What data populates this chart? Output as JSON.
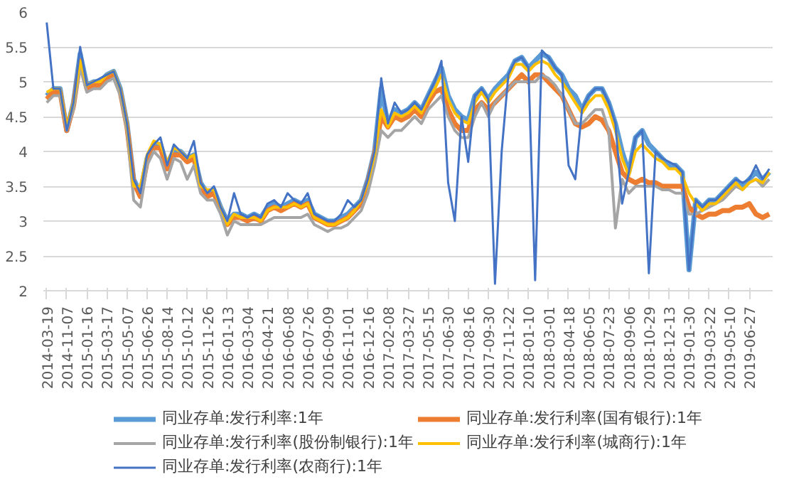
{
  "chart_data": {
    "type": "line",
    "categories": [
      "2014-03-19",
      null,
      null,
      "2014-11-07",
      null,
      null,
      "2015-01-16",
      null,
      null,
      "2015-03-17",
      null,
      null,
      "2015-05-07",
      null,
      null,
      "2015-06-26",
      null,
      null,
      "2015-08-14",
      null,
      null,
      "2015-10-12",
      null,
      null,
      "2015-11-26",
      null,
      null,
      "2016-01-13",
      null,
      null,
      "2016-03-04",
      null,
      null,
      "2016-04-21",
      null,
      null,
      "2016-06-08",
      null,
      null,
      "2016-07-26",
      null,
      null,
      "2016-09-09",
      null,
      null,
      "2016-11-01",
      null,
      null,
      "2016-12-16",
      null,
      null,
      "2017-02-08",
      null,
      null,
      "2017-03-27",
      null,
      null,
      "2017-05-15",
      null,
      null,
      "2017-06-30",
      null,
      null,
      "2017-08-16",
      null,
      null,
      "2017-09-30",
      null,
      null,
      "2017-11-22",
      null,
      null,
      "2018-01-10",
      null,
      null,
      "2018-03-01",
      null,
      null,
      "2018-04-18",
      null,
      null,
      "2018-06-05",
      null,
      null,
      "2018-07-23",
      null,
      null,
      "2018-09-06",
      null,
      null,
      "2018-10-29",
      null,
      null,
      "2018-12-13",
      null,
      null,
      "2019-01-30",
      null,
      null,
      "2019-03-22",
      null,
      null,
      "2019-05-10",
      null,
      null,
      "2019-06-27",
      null,
      null,
      null
    ],
    "ylim": [
      2,
      6
    ],
    "yticks": [
      2,
      2.5,
      3,
      3.5,
      4,
      4.5,
      5,
      5.5,
      6
    ],
    "grid": "y",
    "legend": "bottom",
    "marker": "none",
    "line_style": "solid",
    "series": [
      {
        "name": "同业存单:发行利率:1年",
        "color": "#5b9bd5",
        "values": [
          4.8,
          4.9,
          4.9,
          4.3,
          4.7,
          5.4,
          4.95,
          5.0,
          5.0,
          5.1,
          5.15,
          4.9,
          4.4,
          3.6,
          3.4,
          3.9,
          4.1,
          4.1,
          3.8,
          4.0,
          4.0,
          3.9,
          3.95,
          3.55,
          3.4,
          3.45,
          3.2,
          3.0,
          3.1,
          3.1,
          3.05,
          3.1,
          3.05,
          3.2,
          3.25,
          3.2,
          3.25,
          3.3,
          3.25,
          3.3,
          3.1,
          3.05,
          3.0,
          3.0,
          3.05,
          3.1,
          3.2,
          3.3,
          3.6,
          4.0,
          4.9,
          4.4,
          4.6,
          4.55,
          4.6,
          4.7,
          4.6,
          4.8,
          5.0,
          5.2,
          4.8,
          4.6,
          4.5,
          4.45,
          4.8,
          4.9,
          4.75,
          4.9,
          5.0,
          5.1,
          5.3,
          5.35,
          5.2,
          5.3,
          5.4,
          5.35,
          5.2,
          5.1,
          4.9,
          4.8,
          4.6,
          4.8,
          4.9,
          4.9,
          4.7,
          4.4,
          4.0,
          3.7,
          4.2,
          4.3,
          4.1,
          4.0,
          3.9,
          3.8,
          3.8,
          3.7,
          2.3,
          3.3,
          3.2,
          3.3,
          3.3,
          3.4,
          3.5,
          3.6,
          3.5,
          3.6,
          3.7,
          3.6,
          3.7
        ]
      },
      {
        "name": "同业存单:发行利率(国有银行):1年",
        "color": "#ed7d31",
        "values": [
          4.75,
          4.85,
          4.85,
          4.3,
          4.65,
          5.3,
          4.9,
          4.95,
          4.95,
          5.05,
          5.1,
          4.85,
          4.35,
          3.55,
          3.35,
          3.85,
          4.05,
          4.05,
          3.75,
          3.95,
          3.95,
          3.85,
          3.9,
          3.5,
          3.35,
          3.4,
          3.15,
          2.95,
          3.05,
          3.05,
          3.0,
          3.05,
          3.0,
          3.15,
          3.2,
          3.15,
          3.2,
          3.25,
          3.2,
          3.25,
          3.05,
          3.0,
          2.95,
          2.95,
          3.0,
          3.05,
          3.15,
          3.25,
          3.55,
          3.95,
          4.5,
          4.35,
          4.5,
          4.45,
          4.5,
          4.6,
          4.5,
          4.7,
          4.85,
          4.9,
          4.6,
          4.4,
          4.3,
          4.3,
          4.6,
          4.7,
          4.6,
          4.7,
          4.8,
          4.9,
          5.0,
          5.1,
          5.0,
          5.1,
          5.1,
          5.0,
          4.9,
          4.8,
          4.6,
          4.4,
          4.35,
          4.4,
          4.5,
          4.45,
          4.3,
          4.0,
          3.7,
          3.6,
          3.55,
          3.6,
          3.55,
          3.55,
          3.5,
          3.5,
          3.5,
          3.5,
          3.2,
          3.1,
          3.05,
          3.1,
          3.1,
          3.15,
          3.15,
          3.2,
          3.2,
          3.25,
          3.1,
          3.05,
          3.1
        ]
      },
      {
        "name": "同业存单:发行利率(股份制银行):1年",
        "color": "#a5a5a5",
        "values": [
          4.7,
          4.8,
          4.8,
          4.3,
          4.6,
          5.2,
          4.85,
          4.9,
          4.9,
          5.0,
          5.05,
          4.8,
          4.3,
          3.3,
          3.2,
          3.8,
          4.0,
          3.9,
          3.6,
          3.9,
          3.85,
          3.6,
          3.8,
          3.4,
          3.3,
          3.3,
          3.1,
          2.8,
          3.0,
          2.95,
          2.95,
          2.95,
          2.95,
          3.0,
          3.05,
          3.05,
          3.05,
          3.05,
          3.05,
          3.1,
          2.95,
          2.9,
          2.85,
          2.9,
          2.9,
          2.95,
          3.05,
          3.15,
          3.4,
          3.8,
          4.3,
          4.2,
          4.3,
          4.3,
          4.4,
          4.5,
          4.4,
          4.6,
          4.7,
          4.8,
          4.5,
          4.3,
          4.2,
          4.2,
          4.5,
          4.7,
          4.5,
          4.7,
          4.8,
          4.9,
          5.0,
          5.0,
          5.0,
          5.0,
          5.1,
          5.05,
          4.95,
          4.8,
          4.6,
          4.4,
          4.4,
          4.5,
          4.6,
          4.6,
          4.3,
          2.9,
          3.6,
          3.4,
          3.5,
          3.5,
          3.5,
          3.5,
          3.45,
          3.45,
          3.4,
          3.4,
          3.1,
          3.1,
          3.15,
          3.2,
          3.25,
          3.3,
          3.4,
          3.5,
          3.45,
          3.55,
          3.6,
          3.5,
          3.6
        ]
      },
      {
        "name": "同业存单:发行利率(城商行):1年",
        "color": "#ffc000",
        "values": [
          4.85,
          4.9,
          4.9,
          4.35,
          4.7,
          5.3,
          4.95,
          5.0,
          5.0,
          5.1,
          5.15,
          4.9,
          4.4,
          3.5,
          3.5,
          3.95,
          4.15,
          4.1,
          3.85,
          4.05,
          4.0,
          3.9,
          3.95,
          3.5,
          3.45,
          3.45,
          3.2,
          2.95,
          3.1,
          3.05,
          3.05,
          3.05,
          3.0,
          3.15,
          3.2,
          3.2,
          3.2,
          3.25,
          3.2,
          3.25,
          3.05,
          3.0,
          2.95,
          2.95,
          3.0,
          3.05,
          3.15,
          3.3,
          3.55,
          3.95,
          4.6,
          4.35,
          4.55,
          4.5,
          4.55,
          4.65,
          4.55,
          4.75,
          4.9,
          5.1,
          4.75,
          4.55,
          4.45,
          4.4,
          4.7,
          4.85,
          4.7,
          4.85,
          4.95,
          5.05,
          5.25,
          5.25,
          5.15,
          5.25,
          5.3,
          5.25,
          5.1,
          5.0,
          4.85,
          4.7,
          4.55,
          4.7,
          4.8,
          4.8,
          4.6,
          4.3,
          3.9,
          3.65,
          4.0,
          4.1,
          4.0,
          3.9,
          3.85,
          3.75,
          3.75,
          3.65,
          3.4,
          3.25,
          3.15,
          3.25,
          3.25,
          3.35,
          3.45,
          3.55,
          3.45,
          3.55,
          3.6,
          3.55,
          3.7
        ]
      },
      {
        "name": "同业存单:发行利率(农商行):1年",
        "color": "#4472c4",
        "values": [
          5.85,
          4.9,
          4.9,
          4.3,
          4.7,
          5.5,
          4.95,
          5.0,
          5.05,
          5.1,
          5.15,
          4.9,
          4.4,
          3.6,
          3.4,
          3.95,
          4.1,
          4.2,
          3.8,
          4.1,
          4.0,
          3.9,
          4.15,
          3.55,
          3.4,
          3.5,
          3.2,
          3.0,
          3.4,
          3.1,
          3.05,
          3.1,
          3.05,
          3.25,
          3.3,
          3.2,
          3.4,
          3.3,
          3.25,
          3.4,
          3.1,
          3.05,
          3.0,
          3.0,
          3.1,
          3.3,
          3.2,
          3.3,
          3.6,
          4.0,
          5.05,
          4.4,
          4.7,
          4.55,
          4.6,
          4.7,
          4.6,
          4.8,
          5.0,
          5.3,
          3.55,
          3.0,
          4.5,
          3.85,
          4.8,
          4.9,
          4.75,
          2.1,
          4.0,
          5.1,
          5.3,
          5.35,
          5.2,
          2.15,
          5.45,
          5.35,
          5.2,
          5.1,
          3.8,
          3.6,
          4.6,
          4.8,
          4.9,
          4.9,
          4.7,
          4.4,
          3.25,
          3.7,
          4.2,
          4.3,
          2.25,
          4.0,
          3.9,
          3.85,
          3.8,
          3.7,
          2.3,
          3.3,
          3.2,
          3.3,
          3.3,
          3.4,
          3.5,
          3.6,
          3.55,
          3.6,
          3.8,
          3.6,
          3.75
        ]
      }
    ]
  }
}
